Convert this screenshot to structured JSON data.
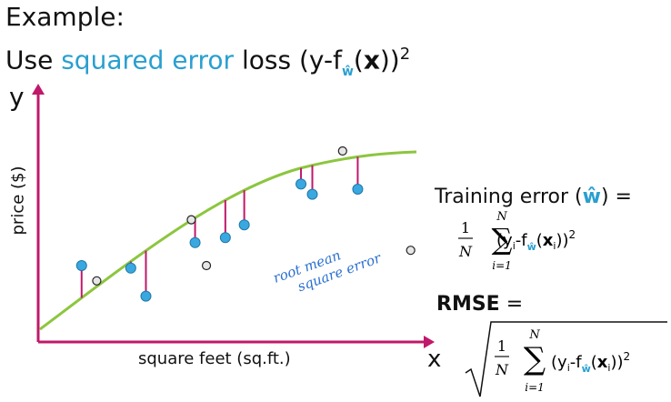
{
  "title": "Example:",
  "subtitle": {
    "prefix": "Use ",
    "accent": "squared error",
    "middle": " loss (y-f",
    "w_hat": "ŵ",
    "x_bold": "x",
    "suffix": "))",
    "power": "2"
  },
  "axes": {
    "y_symbol": "y",
    "x_symbol": "x",
    "y_label": "price ($)",
    "x_label": "square feet (sq.ft.)"
  },
  "annotation": {
    "line1": "root mean",
    "line2": "square error"
  },
  "training_error": {
    "label": "Training error (",
    "w_hat": "ŵ",
    "suffix": ") ="
  },
  "rmse": {
    "label": "RMSE",
    "eq": "="
  },
  "formula": {
    "one": "1",
    "N": "N",
    "sum_top": "N",
    "sum_bottom": "i=1",
    "y": "(y",
    "i": "i",
    "minus_f": "-f",
    "w_hat": "ŵ",
    "x_open": "(",
    "x": "x",
    "close": "))",
    "power": "2"
  },
  "colors": {
    "accent": "#2a9fd0",
    "fit_line": "#8cc63f",
    "residual": "#c0186a",
    "point_blue": "#3aa8e0",
    "axis": "#c0186a"
  },
  "chart_data": {
    "type": "scatter",
    "fit_type": "curve",
    "training_points": [
      {
        "x": 0.11,
        "y": 0.3
      },
      {
        "x": 0.24,
        "y": 0.29
      },
      {
        "x": 0.28,
        "y": 0.18
      },
      {
        "x": 0.41,
        "y": 0.39
      },
      {
        "x": 0.49,
        "y": 0.41
      },
      {
        "x": 0.54,
        "y": 0.46
      },
      {
        "x": 0.69,
        "y": 0.62
      },
      {
        "x": 0.72,
        "y": 0.58
      },
      {
        "x": 0.84,
        "y": 0.6
      }
    ],
    "test_points": [
      {
        "x": 0.15,
        "y": 0.24
      },
      {
        "x": 0.4,
        "y": 0.48
      },
      {
        "x": 0.44,
        "y": 0.3
      },
      {
        "x": 0.8,
        "y": 0.75
      },
      {
        "x": 0.98,
        "y": 0.36
      }
    ]
  }
}
